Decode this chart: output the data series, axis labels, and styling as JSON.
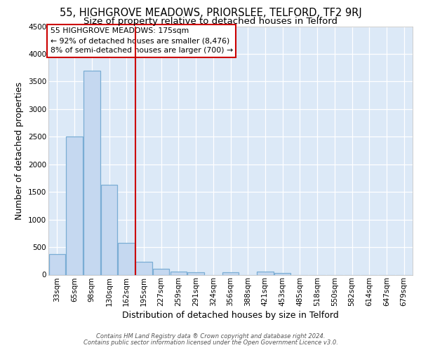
{
  "title_line1": "55, HIGHGROVE MEADOWS, PRIORSLEE, TELFORD, TF2 9RJ",
  "title_line2": "Size of property relative to detached houses in Telford",
  "xlabel": "Distribution of detached houses by size in Telford",
  "ylabel": "Number of detached properties",
  "footer_line1": "Contains HM Land Registry data ® Crown copyright and database right 2024.",
  "footer_line2": "Contains public sector information licensed under the Open Government Licence v3.0.",
  "annotation_line1": "55 HIGHGROVE MEADOWS: 175sqm",
  "annotation_line2": "← 92% of detached houses are smaller (8,476)",
  "annotation_line3": "8% of semi-detached houses are larger (700) →",
  "categories": [
    "33sqm",
    "65sqm",
    "98sqm",
    "130sqm",
    "162sqm",
    "195sqm",
    "227sqm",
    "259sqm",
    "291sqm",
    "324sqm",
    "356sqm",
    "388sqm",
    "421sqm",
    "453sqm",
    "485sqm",
    "518sqm",
    "550sqm",
    "582sqm",
    "614sqm",
    "647sqm",
    "679sqm"
  ],
  "values": [
    380,
    2500,
    3700,
    1630,
    580,
    240,
    110,
    60,
    40,
    0,
    40,
    0,
    60,
    30,
    0,
    0,
    0,
    0,
    0,
    0,
    0
  ],
  "bar_color": "#c5d8f0",
  "bar_edge_color": "#7aadd4",
  "vline_x": 4.5,
  "vline_color": "#cc0000",
  "ylim": [
    0,
    4500
  ],
  "yticks": [
    0,
    500,
    1000,
    1500,
    2000,
    2500,
    3000,
    3500,
    4000,
    4500
  ],
  "plot_bg_color": "#dce9f7",
  "title_fontsize": 10.5,
  "subtitle_fontsize": 9.5,
  "axis_label_fontsize": 9,
  "tick_fontsize": 7.5,
  "annotation_fontsize": 7.8,
  "footer_fontsize": 6.0
}
